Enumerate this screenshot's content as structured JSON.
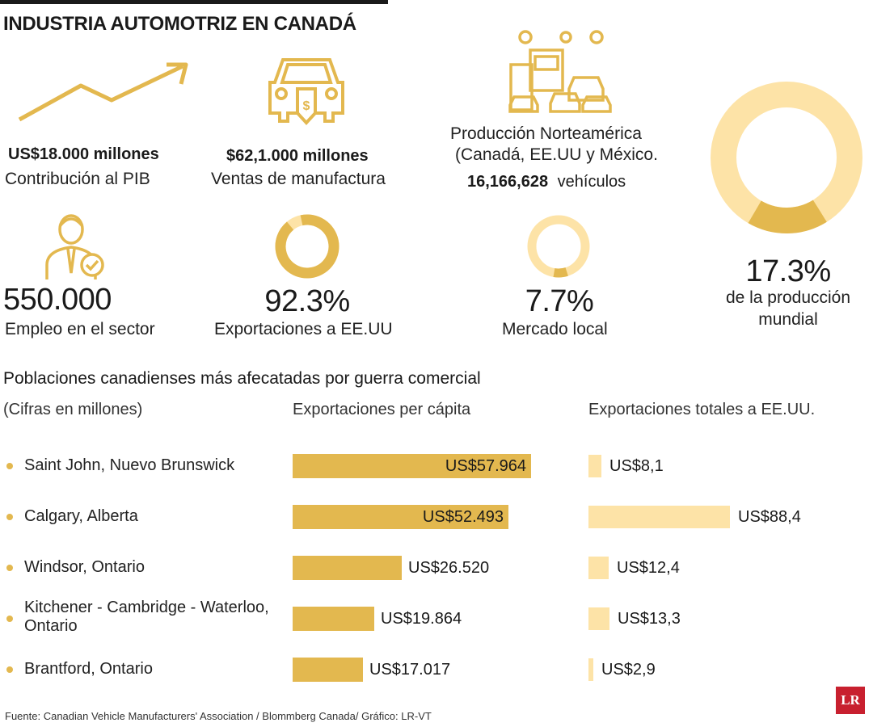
{
  "title": "INDUSTRIA AUTOMOTRIZ EN CANADÁ",
  "colors": {
    "gold": "#e3b84f",
    "light": "#fde3a7",
    "text": "#1a1a1a",
    "brand": "#c8202f"
  },
  "stats": {
    "pib": {
      "value": "US$18.000 millones",
      "label": "Contribución al PIB",
      "icon": "trend-arrow-icon"
    },
    "ventas": {
      "value": "$62,1.000 millones",
      "label": "Ventas de manufactura",
      "icon": "car-price-tag-icon"
    },
    "produccion": {
      "line1": "Producción Norteamérica",
      "line2": "(Canadá, EE.UU y México.",
      "number": "16,166,628",
      "unit": "vehículos",
      "icon": "factory-cars-icon"
    },
    "empleo": {
      "value": "550.000",
      "label": "Empleo en el sector",
      "icon": "worker-check-icon"
    },
    "exportaciones": {
      "value": "92.3%",
      "label": "Exportaciones a EE.UU",
      "fraction": 0.923
    },
    "mercado": {
      "value": "7.7%",
      "label": "Mercado local",
      "fraction": 0.077
    },
    "mundial": {
      "value": "17.3%",
      "label_line1": "de la producción",
      "label_line2": "mundial",
      "fraction": 0.173
    }
  },
  "section": {
    "title": "Poblaciones canadienses más afecatadas por guerra comercial",
    "note": "(Cifras en millones)",
    "col1": "Exportaciones per cápita",
    "col2": "Exportaciones totales a EE.UU."
  },
  "chart_data": [
    {
      "type": "bar",
      "title": "Exportaciones per cápita",
      "categories": [
        "Saint John, Nuevo Brunswick",
        "Calgary, Alberta",
        "Windsor, Ontario",
        "Kitchener - Cambridge - Waterloo, Ontario",
        "Brantford, Ontario"
      ],
      "values": [
        57964,
        52493,
        26520,
        19864,
        17017
      ],
      "labels": [
        "US$57.964",
        "US$52.493",
        "US$26.520",
        "US$19.864",
        "US$17.017"
      ]
    },
    {
      "type": "bar",
      "title": "Exportaciones totales a EE.UU.",
      "categories": [
        "Saint John, Nuevo Brunswick",
        "Calgary, Alberta",
        "Windsor, Ontario",
        "Kitchener - Cambridge - Waterloo, Ontario",
        "Brantford, Ontario"
      ],
      "values": [
        8.1,
        88.4,
        12.4,
        13.3,
        2.9
      ],
      "labels": [
        "US$8,1",
        "US$88,4",
        "US$12,4",
        "US$13,3",
        "US$2,9"
      ]
    }
  ],
  "source": "Fuente: Canadian Vehicle Manufacturers' Association / Blommberg Canada/ Gráfico: LR-VT",
  "logo": "LR"
}
